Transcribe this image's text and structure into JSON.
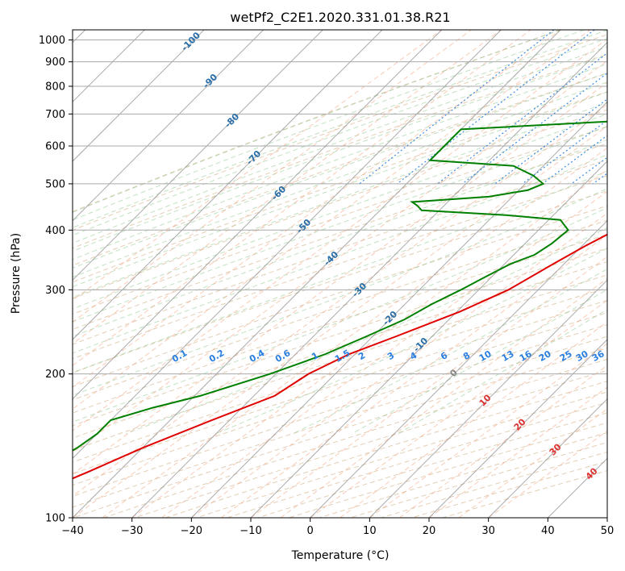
{
  "chart_data": {
    "type": "skew-t",
    "title": "wetPf2_C2E1.2020.331.01.38.R21",
    "xlabel": "Temperature (°C)",
    "ylabel": "Pressure (hPa)",
    "xlim": [
      -40,
      50
    ],
    "ylim": [
      1050,
      100
    ],
    "x_ticks": [
      -40,
      -30,
      -20,
      -10,
      0,
      10,
      20,
      30,
      40,
      50
    ],
    "y_ticks": [
      100,
      200,
      300,
      400,
      500,
      600,
      700,
      800,
      900,
      1000
    ],
    "grid": true,
    "series": [
      {
        "role": "temperature",
        "color": "#e00000",
        "points": [
          [
            1000,
            19.0
          ],
          [
            975,
            16.5
          ],
          [
            950,
            15.0
          ],
          [
            925,
            14.6
          ],
          [
            900,
            14.2
          ],
          [
            870,
            14.4
          ],
          [
            850,
            14.2
          ],
          [
            830,
            14.0
          ],
          [
            800,
            14.6
          ],
          [
            760,
            15.0
          ],
          [
            720,
            14.6
          ],
          [
            700,
            14.0
          ],
          [
            650,
            14.0
          ],
          [
            600,
            13.8
          ],
          [
            560,
            11.5
          ],
          [
            520,
            9.0
          ],
          [
            500,
            8.0
          ],
          [
            460,
            7.2
          ],
          [
            420,
            4.5
          ],
          [
            400,
            3.0
          ],
          [
            370,
            0.5
          ],
          [
            340,
            -1.8
          ],
          [
            300,
            -5.0
          ],
          [
            270,
            -9.5
          ],
          [
            240,
            -16.0
          ],
          [
            220,
            -21.0
          ],
          [
            200,
            -24.5
          ],
          [
            180,
            -26.5
          ],
          [
            160,
            -33.0
          ],
          [
            140,
            -40.0
          ],
          [
            125,
            -45.0
          ],
          [
            115,
            -49.0
          ],
          [
            100,
            -54.0
          ]
        ]
      },
      {
        "role": "dewpoint",
        "color": "#008000",
        "points": [
          [
            1000,
            12.5
          ],
          [
            970,
            12.0
          ],
          [
            940,
            10.8
          ],
          [
            910,
            8.5
          ],
          [
            880,
            5.0
          ],
          [
            850,
            2.0
          ],
          [
            835,
            2.0
          ],
          [
            820,
            0.8
          ],
          [
            800,
            -1.0
          ],
          [
            770,
            -2.0
          ],
          [
            740,
            -6.0
          ],
          [
            720,
            -8.0
          ],
          [
            700,
            -8.5
          ],
          [
            680,
            -12.0
          ],
          [
            650,
            -40.0
          ],
          [
            600,
            -40.0
          ],
          [
            560,
            -40.0
          ],
          [
            545,
            -25.0
          ],
          [
            520,
            -20.0
          ],
          [
            500,
            -17.0
          ],
          [
            485,
            -18.5
          ],
          [
            470,
            -24.0
          ],
          [
            458,
            -36.0
          ],
          [
            450,
            -34.5
          ],
          [
            440,
            -33.0
          ],
          [
            430,
            -18.0
          ],
          [
            420,
            -8.0
          ],
          [
            400,
            -5.0
          ],
          [
            375,
            -5.5
          ],
          [
            355,
            -6.5
          ],
          [
            340,
            -9.0
          ],
          [
            320,
            -11.0
          ],
          [
            300,
            -13.0
          ],
          [
            280,
            -15.5
          ],
          [
            260,
            -17.5
          ],
          [
            240,
            -21.0
          ],
          [
            220,
            -25.0
          ],
          [
            200,
            -31.0
          ],
          [
            180,
            -39.0
          ],
          [
            170,
            -45.0
          ],
          [
            160,
            -50.0
          ],
          [
            150,
            -50.0
          ],
          [
            140,
            -51.0
          ],
          [
            125,
            -54.0
          ],
          [
            115,
            -57.0
          ],
          [
            100,
            -65.0
          ]
        ]
      }
    ],
    "isotherm_labels": [
      "-100",
      "-90",
      "-80",
      "-70",
      "-60",
      "-50",
      "-40",
      "-30",
      "-20",
      "-10"
    ],
    "mixing_ratio_labels": [
      "0.1",
      "0.2",
      "0.4",
      "0.6",
      "1",
      "1.5",
      "2",
      "3",
      "4",
      "6",
      "8",
      "10",
      "13",
      "16",
      "20",
      "25",
      "30",
      "36"
    ],
    "moist_adiabat_labels": [
      "0",
      "10",
      "20",
      "30",
      "40"
    ]
  }
}
